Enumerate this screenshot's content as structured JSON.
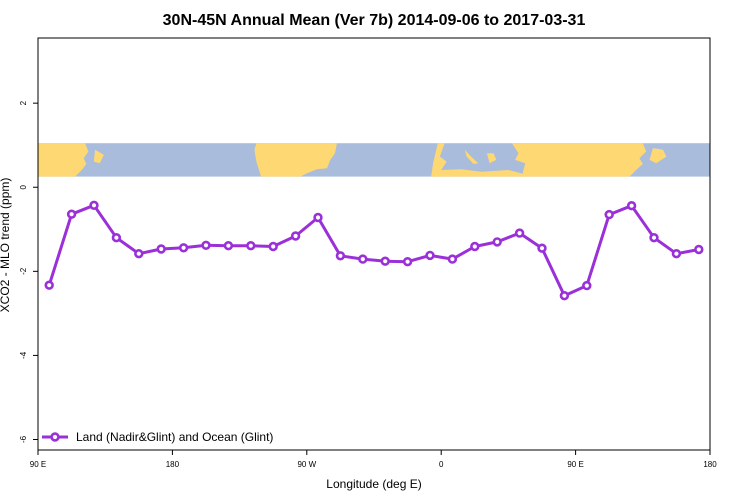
{
  "chart_data": {
    "type": "line",
    "title": "30N-45N Annual Mean (Ver 7b)   2014-09-06 to 2017-03-31",
    "xlabel": "Longitude (deg E)",
    "ylabel": "XCO2 - MLO trend (ppm)",
    "x_ticks": [
      {
        "value": 90,
        "label": "90 E"
      },
      {
        "value": 180,
        "label": "180"
      },
      {
        "value": 270,
        "label": "90 W"
      },
      {
        "value": 360,
        "label": "0"
      },
      {
        "value": 450,
        "label": "90 E"
      },
      {
        "value": 540,
        "label": "180"
      }
    ],
    "y_ticks": [
      {
        "value": 2,
        "label": "2"
      },
      {
        "value": 0,
        "label": "0"
      },
      {
        "value": -2,
        "label": "-2"
      },
      {
        "value": -4,
        "label": "-4"
      },
      {
        "value": -6,
        "label": "-6"
      }
    ],
    "xlim": [
      90,
      540
    ],
    "ylim": [
      -6.25,
      3.55
    ],
    "grid": false,
    "legend_position": "bottom-left",
    "map_strip": {
      "description": "world map band",
      "ocean_color": "#a9bcdc",
      "land_color": "#fdd873",
      "y_range": [
        0.25,
        1.05
      ]
    },
    "series": [
      {
        "name": "Land (Nadir&Glint) and Ocean (Glint)",
        "color": "#9b30d9",
        "x": [
          97.5,
          112.5,
          127.5,
          142.5,
          157.5,
          172.5,
          187.5,
          202.5,
          217.5,
          232.5,
          247.5,
          262.5,
          277.5,
          292.5,
          307.5,
          322.5,
          337.5,
          352.5,
          367.5,
          382.5,
          397.5,
          412.5,
          427.5,
          442.5,
          457.5,
          472.5,
          487.5,
          502.5,
          517.5,
          532.5
        ],
        "y": [
          -2.33,
          -0.64,
          -0.43,
          -1.2,
          -1.58,
          -1.47,
          -1.44,
          -1.38,
          -1.39,
          -1.39,
          -1.41,
          -1.16,
          -0.72,
          -1.63,
          -1.71,
          -1.76,
          -1.77,
          -1.62,
          -1.71,
          -1.41,
          -1.3,
          -1.09,
          -1.45,
          -2.58,
          -2.34,
          -0.65,
          -0.44,
          -1.2,
          -1.58,
          -1.48
        ]
      }
    ]
  }
}
